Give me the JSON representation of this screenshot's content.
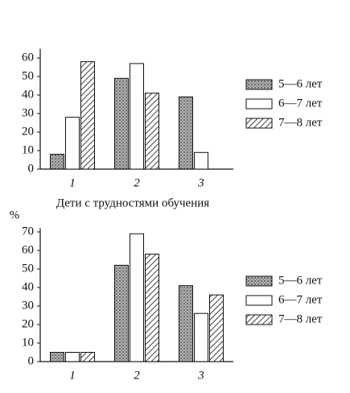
{
  "chart_data": [
    {
      "type": "bar",
      "categories": [
        "1",
        "2",
        "3"
      ],
      "series": [
        {
          "name": "5—6 лет",
          "color": "#8a8a8a",
          "pattern": "dots",
          "values": [
            8,
            49,
            39
          ]
        },
        {
          "name": "6—7 лет",
          "color": "#ffffff",
          "pattern": "none",
          "values": [
            28,
            57,
            9
          ]
        },
        {
          "name": "7—8 лет",
          "color": "#ffffff",
          "pattern": "hatch",
          "values": [
            58,
            41,
            0
          ]
        }
      ],
      "ylim": [
        0,
        65
      ],
      "yticks": [
        0,
        10,
        20,
        30,
        40,
        50,
        60
      ],
      "legend": "right"
    },
    {
      "type": "bar",
      "title": "Дети с трудностями обучения",
      "y_label": "%",
      "categories": [
        "1",
        "2",
        "3"
      ],
      "series": [
        {
          "name": "5—6 лет",
          "color": "#8a8a8a",
          "pattern": "dots",
          "values": [
            5,
            52,
            41
          ]
        },
        {
          "name": "6—7 лет",
          "color": "#ffffff",
          "pattern": "none",
          "values": [
            5,
            69,
            26
          ]
        },
        {
          "name": "7—8 лет",
          "color": "#ffffff",
          "pattern": "hatch",
          "values": [
            5,
            58,
            36
          ]
        }
      ],
      "ylim": [
        0,
        72
      ],
      "yticks": [
        0,
        10,
        20,
        30,
        40,
        50,
        60,
        70
      ],
      "legend": "right"
    }
  ]
}
